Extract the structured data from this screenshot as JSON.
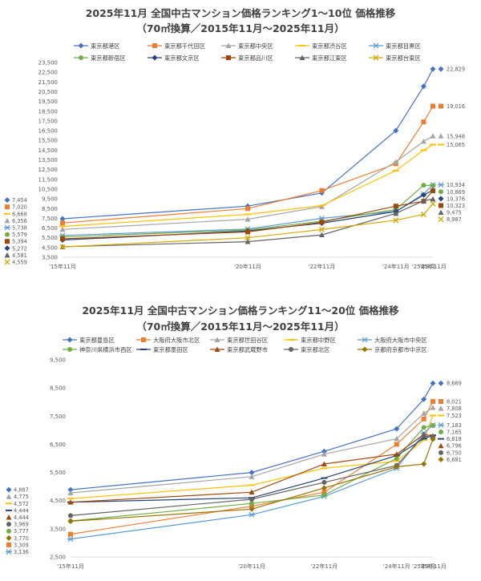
{
  "chart_data": [
    {
      "type": "line",
      "title": "2025年11月 全国中古マンション価格ランキング1～10位 価格推移",
      "subtitle": "（70㎡換算／2015年11月～2025年11月）",
      "categories": [
        "'15年11月",
        "'20年11月",
        "'22年11月",
        "'24年11月",
        "'25年8月",
        "'25年11月"
      ],
      "x": [
        2015.83,
        2020.83,
        2022.83,
        2024.83,
        2025.58,
        2025.83
      ],
      "ylim": [
        3500,
        23500
      ],
      "yticks": [
        "3,500",
        "4,500",
        "5,500",
        "6,500",
        "7,500",
        "8,500",
        "9,500",
        "10,500",
        "11,500",
        "12,500",
        "13,500",
        "14,500",
        "15,500",
        "16,500",
        "17,500",
        "18,500",
        "19,500",
        "20,500",
        "21,500",
        "22,500",
        "23,500"
      ],
      "grid": false,
      "legend": "top",
      "series": [
        {
          "name": "東京都港区",
          "color": "#4472c4",
          "marker": "diamond",
          "values": [
            7454,
            8750,
            10100,
            16500,
            21050,
            22829
          ],
          "start_label": "7,454",
          "end_label": "22,829"
        },
        {
          "name": "東京都千代田区",
          "color": "#ed7d31",
          "marker": "square",
          "values": [
            7020,
            8500,
            10350,
            13100,
            17400,
            19016
          ],
          "start_label": "7,020",
          "end_label": "19,016"
        },
        {
          "name": "東京都中央区",
          "color": "#a5a5a5",
          "marker": "triangle",
          "values": [
            6356,
            7400,
            8700,
            13300,
            15400,
            15948
          ],
          "start_label": "6,356",
          "end_label": "15,948"
        },
        {
          "name": "東京都渋谷区",
          "color": "#ffc000",
          "marker": "line",
          "values": [
            6668,
            7900,
            8800,
            12400,
            14500,
            15065
          ],
          "start_label": "6,668",
          "end_label": "15,065"
        },
        {
          "name": "東京都目黒区",
          "color": "#5b9bd5",
          "marker": "star",
          "values": [
            5738,
            6400,
            7500,
            8200,
            10000,
            10934
          ],
          "start_label": "5,738",
          "end_label": "10,934"
        },
        {
          "name": "東京都新宿区",
          "color": "#70ad47",
          "marker": "circle",
          "values": [
            5579,
            6300,
            7200,
            8400,
            10900,
            10869
          ],
          "start_label": "5,579",
          "end_label": "10,869"
        },
        {
          "name": "東京都文京区",
          "color": "#264478",
          "marker": "diamond",
          "values": [
            5272,
            6200,
            7000,
            8200,
            9900,
            10376
          ],
          "start_label": "5,272",
          "end_label": "10,376"
        },
        {
          "name": "東京都品川区",
          "color": "#9e480e",
          "marker": "square",
          "values": [
            5394,
            6100,
            7100,
            8750,
            9250,
            10323
          ],
          "start_label": "5,394",
          "end_label": "10,323"
        },
        {
          "name": "東京都江東区",
          "color": "#636363",
          "marker": "triangle",
          "values": [
            4581,
            5100,
            5800,
            8000,
            9300,
            9475
          ],
          "start_label": "4,581",
          "end_label": "9,475"
        },
        {
          "name": "東京都台東区",
          "color": "#d6a800",
          "marker": "x",
          "values": [
            4559,
            5500,
            6350,
            7300,
            7900,
            8987
          ],
          "start_label": "4,559",
          "end_label": "8,987"
        }
      ]
    },
    {
      "type": "line",
      "title": "2025年11月 全国中古マンション価格ランキング11～20位 価格推移",
      "subtitle": "（70㎡換算／2015年11月～2025年11月）",
      "categories": [
        "'15年11月",
        "'20年11月",
        "'22年11月",
        "'24年11月",
        "'25年8月",
        "'25年11月"
      ],
      "x": [
        2015.83,
        2020.83,
        2022.83,
        2024.83,
        2025.58,
        2025.83
      ],
      "ylim": [
        2500,
        9500
      ],
      "yticks": [
        "2,500",
        "3,500",
        "4,500",
        "5,500",
        "6,500",
        "7,500",
        "8,500",
        "9,500"
      ],
      "grid": false,
      "legend": "top",
      "series": [
        {
          "name": "東京都豊島区",
          "color": "#4472c4",
          "marker": "diamond",
          "values": [
            4887,
            5500,
            6250,
            7050,
            8100,
            8669
          ],
          "start_label": "4,887",
          "end_label": "8,669"
        },
        {
          "name": "大阪府大阪市北区",
          "color": "#ed7d31",
          "marker": "square",
          "values": [
            3309,
            4300,
            4800,
            6500,
            7400,
            8021
          ],
          "start_label": "3,309",
          "end_label": "8,021"
        },
        {
          "name": "東京都世田谷区",
          "color": "#a5a5a5",
          "marker": "triangle",
          "values": [
            4775,
            5350,
            6150,
            6700,
            7600,
            7808
          ],
          "start_label": "4,775",
          "end_label": "7,808"
        },
        {
          "name": "東京都中野区",
          "color": "#ffc000",
          "marker": "line",
          "values": [
            4572,
            5050,
            5650,
            5900,
            6650,
            7523
          ],
          "start_label": "4,572",
          "end_label": "7,523"
        },
        {
          "name": "大阪府大阪市中央区",
          "color": "#5b9bd5",
          "marker": "star",
          "values": [
            3136,
            4000,
            4650,
            5650,
            6900,
            7183
          ],
          "start_label": "3,136",
          "end_label": "7,183"
        },
        {
          "name": "神奈川県横浜市西区",
          "color": "#70ad47",
          "marker": "circle",
          "values": [
            3777,
            4400,
            4700,
            6000,
            7100,
            7165
          ],
          "start_label": "3,777",
          "end_label": "7,165"
        },
        {
          "name": "東京都墨田区",
          "color": "#264478",
          "marker": "line",
          "values": [
            4444,
            4600,
            5300,
            6100,
            6700,
            6818
          ],
          "start_label": "4,444",
          "end_label": "6,818"
        },
        {
          "name": "東京都武蔵野市",
          "color": "#9e480e",
          "marker": "triangle",
          "values": [
            4444,
            4800,
            5800,
            6150,
            6850,
            6796
          ],
          "start_label": "4,444",
          "end_label": "6,796"
        },
        {
          "name": "東京都北区",
          "color": "#636363",
          "marker": "circle",
          "values": [
            3969,
            4550,
            5150,
            5750,
            6800,
            6750
          ],
          "start_label": "3,969",
          "end_label": "6,750"
        },
        {
          "name": "京都府京都市中京区",
          "color": "#997300",
          "marker": "diamond",
          "values": [
            3770,
            4200,
            4950,
            5700,
            5800,
            6681
          ],
          "start_label": "3,770",
          "end_label": "6,681"
        }
      ]
    }
  ]
}
